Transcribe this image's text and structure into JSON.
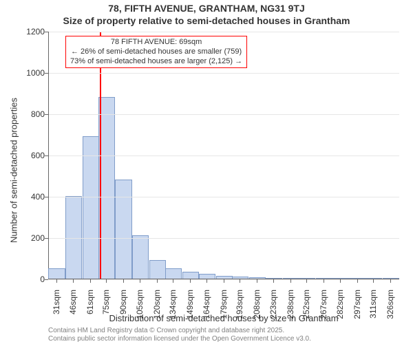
{
  "title_line1": "78, FIFTH AVENUE, GRANTHAM, NG31 9TJ",
  "title_line2": "Size of property relative to semi-detached houses in Grantham",
  "ylabel": "Number of semi-detached properties",
  "xlabel": "Distribution of semi-detached houses by size in Grantham",
  "credits_line1": "Contains HM Land Registry data © Crown copyright and database right 2025.",
  "credits_line2": "Contains public sector information licensed under the Open Government Licence v3.0.",
  "annotation": {
    "line1": "78 FIFTH AVENUE: 69sqm",
    "line2": "← 26% of semi-detached houses are smaller (759)",
    "line3": "73% of semi-detached houses are larger (2,125) →",
    "border_color": "#ff0000",
    "fontsize": 11
  },
  "chart": {
    "type": "histogram",
    "background_color": "#ffffff",
    "grid_color": "#e6e6e6",
    "axis_color": "#666666",
    "bar_fill": "#c9d8f0",
    "bar_stroke": "#7f9cc9",
    "marker_line_color": "#ff0000",
    "marker_x": 69,
    "xlim": [
      24,
      334
    ],
    "ylim": [
      0,
      1200
    ],
    "yticks": [
      0,
      200,
      400,
      600,
      800,
      1000,
      1200
    ],
    "xtick_centers": [
      31,
      46,
      61,
      75,
      90,
      105,
      120,
      134,
      149,
      164,
      179,
      193,
      208,
      223,
      238,
      252,
      267,
      282,
      297,
      311,
      326
    ],
    "xtick_suffix": "sqm",
    "bin_width": 14.7,
    "values": [
      50,
      400,
      690,
      880,
      480,
      210,
      90,
      50,
      35,
      25,
      15,
      10,
      6,
      4,
      3,
      2,
      1,
      1,
      1,
      0,
      1
    ],
    "title_fontsize": 14,
    "label_fontsize": 13,
    "tick_fontsize": 12,
    "credits_fontsize": 10,
    "credits_color": "#808080"
  }
}
